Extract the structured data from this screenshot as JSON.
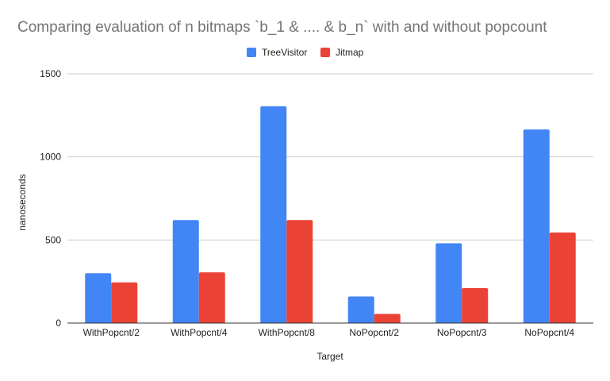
{
  "chart_data": {
    "type": "bar",
    "title": "Comparing evaluation of n bitmaps `b_1 & .... & b_n` with and without popcount",
    "xlabel": "Target",
    "ylabel": "nanoseconds",
    "categories": [
      "WithPopcnt/2",
      "WithPopcnt/4",
      "WithPopcnt/8",
      "NoPopcnt/2",
      "NoPopcnt/3",
      "NoPopcnt/4"
    ],
    "series": [
      {
        "name": "TreeVisitor",
        "color": "#4285f4",
        "values": [
          300,
          620,
          1305,
          160,
          480,
          1165
        ]
      },
      {
        "name": "Jitmap",
        "color": "#ea4335",
        "values": [
          245,
          305,
          620,
          55,
          210,
          545
        ]
      }
    ],
    "ylim": [
      0,
      1500
    ],
    "yticks": [
      0,
      500,
      1000,
      1500
    ],
    "grid": true,
    "legend_position": "top-center"
  }
}
